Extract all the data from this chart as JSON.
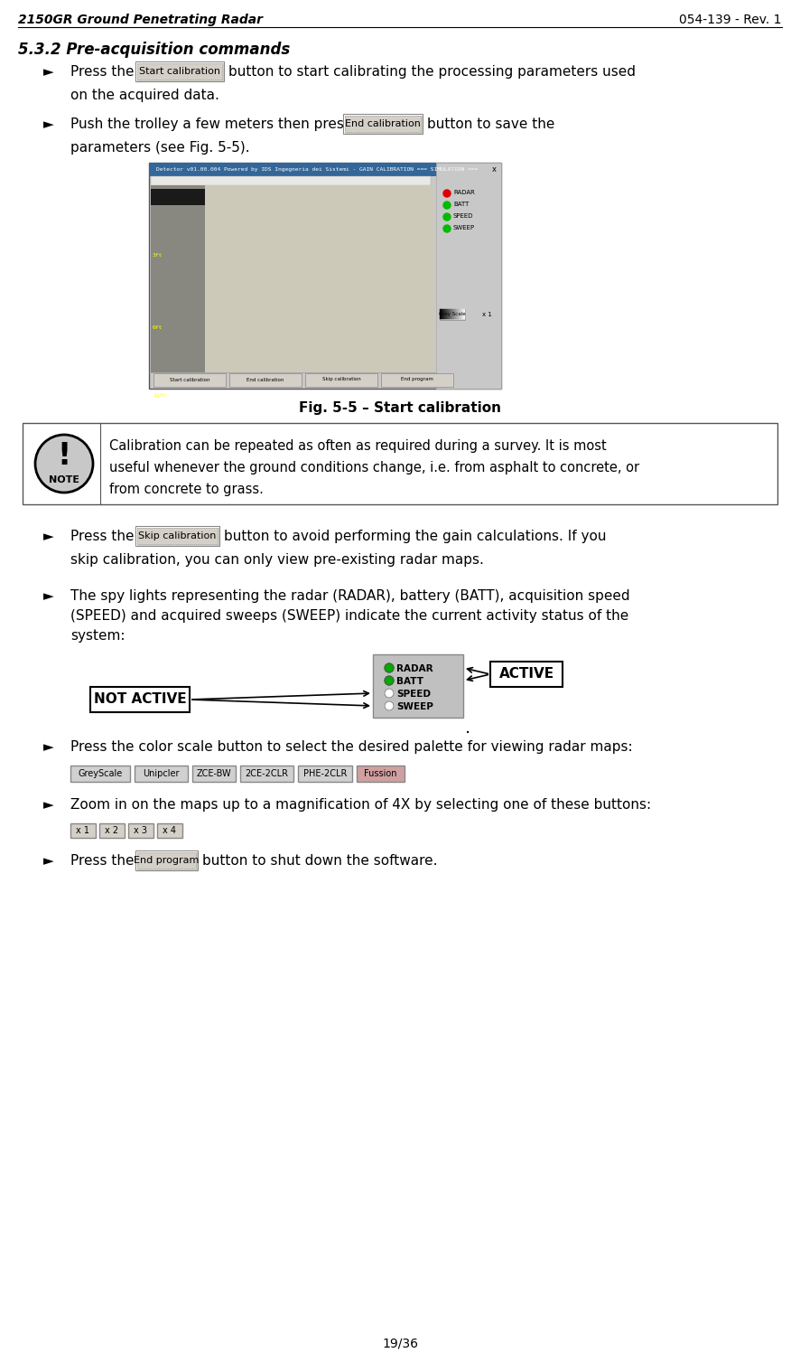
{
  "header_left": "2150GR Ground Penetrating Radar",
  "header_right": "054-139 - Rev. 1",
  "section_title": "5.3.2 Pre-acquisition commands",
  "footer": "19/36",
  "bg_color": "#ffffff",
  "text_color": "#000000",
  "note_lines": [
    "Calibration can be repeated as often as required during a survey. It is most",
    "useful whenever the ground conditions change, i.e. from asphalt to concrete, or",
    "from concrete to grass."
  ],
  "fig_caption": "Fig. 5-5 – Start calibration",
  "color_buttons": [
    "GreyScale",
    "Unipcler",
    "ZCE-BW",
    "2CE-2CLR",
    "PHE-2CLR",
    "Fussion"
  ],
  "zoom_buttons": [
    "x 1",
    "x 2",
    "x 3",
    "x 4"
  ],
  "spy_not_active_label": "NOT ACTIVE",
  "spy_active_label": "ACTIVE",
  "spy_labels": [
    "RADAR",
    "BATT",
    "SPEED",
    "SWEEP"
  ],
  "spy_active": [
    true,
    true,
    false,
    false
  ]
}
